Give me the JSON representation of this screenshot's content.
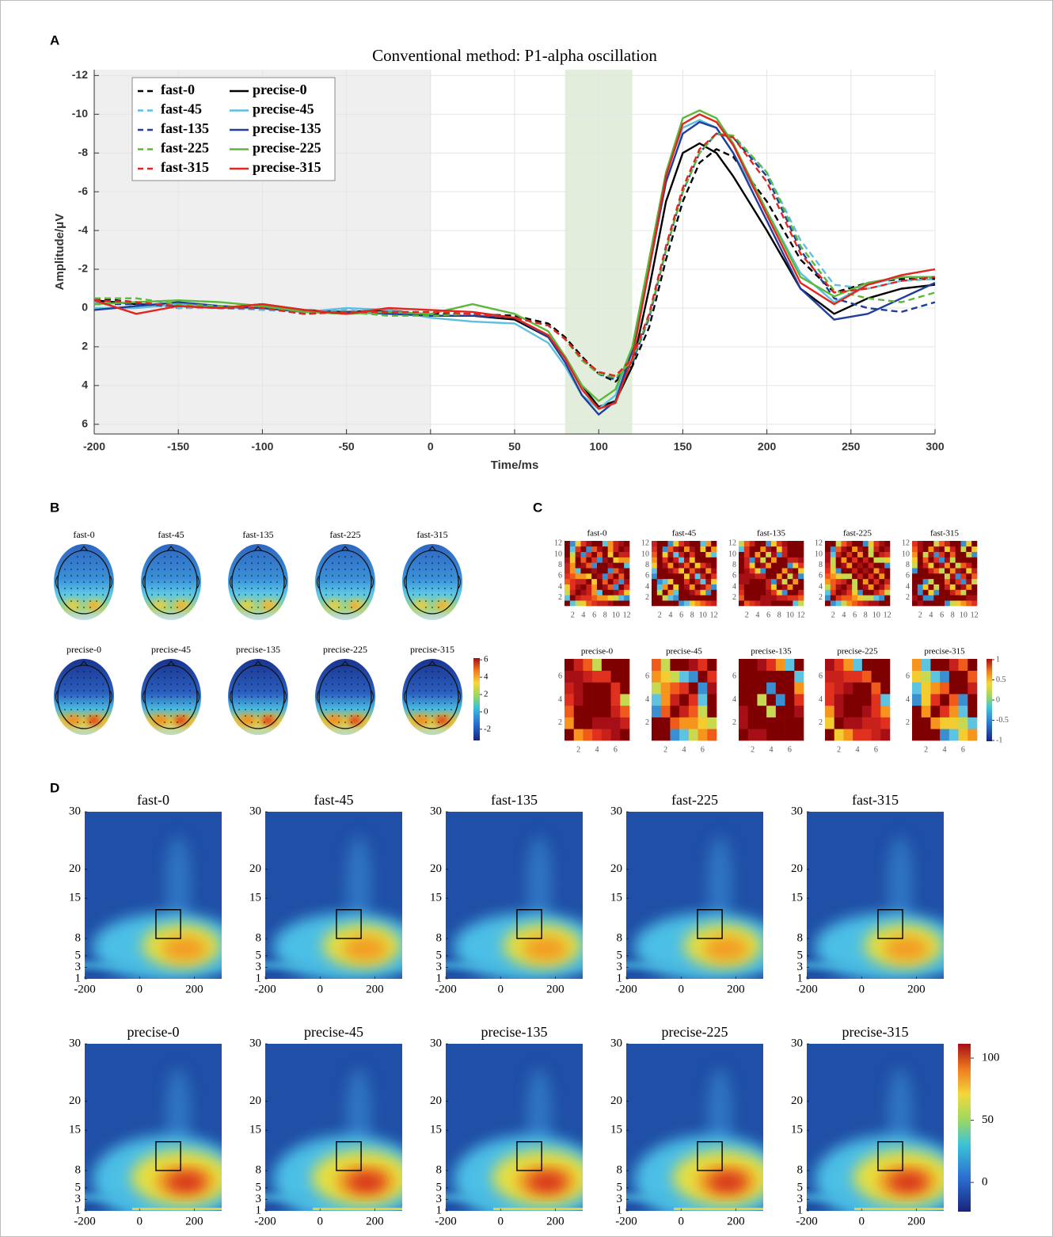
{
  "chart_data": [
    {
      "type": "line",
      "panel_label": "A",
      "title": "Conventional method: P1-alpha oscillation",
      "x_label": "Time/ms",
      "y_label": "Amplitude/μV",
      "x": [
        -200,
        -175,
        -150,
        -125,
        -100,
        -75,
        -50,
        -25,
        0,
        25,
        50,
        70,
        80,
        90,
        100,
        110,
        120,
        130,
        140,
        150,
        160,
        170,
        180,
        200,
        220,
        240,
        260,
        280,
        300
      ],
      "xlim": [
        -200,
        300
      ],
      "xticks": [
        -200,
        -150,
        -100,
        -50,
        0,
        50,
        100,
        150,
        200,
        250,
        300
      ],
      "ylim": [
        -12.3,
        6.5
      ],
      "yticks": [
        -12,
        -10,
        -8,
        -6,
        -4,
        -2,
        0,
        2,
        4,
        6
      ],
      "y_reversed": true,
      "grid": true,
      "legend_position": "upper left",
      "shaded_regions": [
        {
          "x": [
            -200,
            0
          ],
          "color": "#efefef"
        },
        {
          "x": [
            80,
            120
          ],
          "color": "#e2eedb"
        }
      ],
      "series": [
        {
          "name": "fast-0",
          "color": "#000000",
          "dashed": true,
          "values": [
            -0.5,
            -0.3,
            0,
            -0.1,
            0,
            0.3,
            0.2,
            0.2,
            0.3,
            0.3,
            0.4,
            0.8,
            1.5,
            2.5,
            3.4,
            3.8,
            3.0,
            1.0,
            -2.5,
            -5.5,
            -7.5,
            -8.2,
            -7.8,
            -5.5,
            -2.5,
            -0.8,
            -1.3,
            -1.5,
            -1.5
          ]
        },
        {
          "name": "precise-0",
          "color": "#000000",
          "dashed": false,
          "values": [
            -0.4,
            -0.2,
            -0.1,
            0,
            -0.2,
            0.1,
            0.2,
            0.1,
            0.4,
            0.4,
            0.6,
            1.5,
            2.5,
            4.0,
            5.1,
            4.8,
            3.0,
            -1.0,
            -5.5,
            -8.0,
            -8.5,
            -8.0,
            -6.8,
            -4.0,
            -1.0,
            0.3,
            -0.5,
            -1.0,
            -1.2
          ]
        },
        {
          "name": "fast-45",
          "color": "#5fbfe0",
          "dashed": true,
          "values": [
            -0.3,
            -0.2,
            0,
            0,
            0.1,
            0.2,
            0.1,
            0.3,
            0.4,
            0.3,
            0.5,
            0.9,
            1.6,
            2.6,
            3.3,
            3.6,
            2.8,
            0.5,
            -3.0,
            -6.0,
            -8.0,
            -9.0,
            -8.8,
            -7.0,
            -3.5,
            -1.2,
            -1.0,
            -1.4,
            -1.5
          ]
        },
        {
          "name": "precise-45",
          "color": "#5fbfe0",
          "dashed": false,
          "values": [
            0,
            0,
            -0.2,
            0,
            0,
            0.2,
            0,
            0.1,
            0.5,
            0.7,
            0.8,
            1.8,
            3.0,
            4.5,
            5.2,
            4.5,
            2.0,
            -2.5,
            -7.0,
            -9.3,
            -9.7,
            -9.3,
            -8.0,
            -5.0,
            -1.8,
            -0.3,
            -1.2,
            -1.6,
            -1.6
          ]
        },
        {
          "name": "fast-135",
          "color": "#1f3f9a",
          "dashed": true,
          "values": [
            -0.2,
            -0.2,
            -0.1,
            0,
            0,
            0.2,
            0.3,
            0.2,
            0.4,
            0.3,
            0.5,
            0.9,
            1.6,
            2.6,
            3.4,
            3.7,
            2.8,
            0.5,
            -3.0,
            -6.0,
            -8.0,
            -9.0,
            -8.8,
            -6.8,
            -3.0,
            -0.5,
            0,
            0.2,
            -0.3
          ]
        },
        {
          "name": "precise-135",
          "color": "#1f3f9a",
          "dashed": false,
          "values": [
            0.1,
            -0.1,
            -0.3,
            -0.1,
            0,
            0.2,
            0.2,
            0.3,
            0.4,
            0.4,
            0.5,
            1.5,
            2.8,
            4.5,
            5.5,
            4.8,
            2.2,
            -2.0,
            -6.5,
            -9.0,
            -9.6,
            -9.3,
            -8.0,
            -4.5,
            -1.0,
            0.6,
            0.3,
            -0.5,
            -1.3
          ]
        },
        {
          "name": "fast-225",
          "color": "#5cb83a",
          "dashed": true,
          "values": [
            -0.5,
            -0.5,
            -0.2,
            -0.1,
            0,
            0.2,
            0.2,
            0.4,
            0.4,
            0.3,
            0.5,
            0.9,
            1.6,
            2.7,
            3.4,
            3.6,
            2.7,
            0.4,
            -3.0,
            -6.0,
            -8.0,
            -9.0,
            -8.9,
            -7.0,
            -3.2,
            -0.9,
            -0.5,
            -0.3,
            -0.8
          ]
        },
        {
          "name": "precise-225",
          "color": "#5cb83a",
          "dashed": false,
          "values": [
            -0.2,
            -0.3,
            -0.4,
            -0.3,
            -0.1,
            0.2,
            0.3,
            0.2,
            0.3,
            -0.2,
            0.3,
            1.2,
            2.5,
            4.0,
            4.8,
            4.2,
            2.0,
            -2.5,
            -7.0,
            -9.8,
            -10.2,
            -9.8,
            -8.5,
            -5.0,
            -1.6,
            -0.6,
            -1.3,
            -1.6,
            -1.6
          ]
        },
        {
          "name": "fast-315",
          "color": "#e0261f",
          "dashed": true,
          "values": [
            -0.4,
            -0.3,
            -0.1,
            0,
            0,
            0.3,
            0.2,
            0.2,
            0.2,
            0.3,
            0.5,
            0.9,
            1.6,
            2.6,
            3.3,
            3.5,
            2.6,
            0.3,
            -3.2,
            -6.2,
            -8.2,
            -9.0,
            -8.8,
            -6.5,
            -2.8,
            -0.8,
            -1.0,
            -1.4,
            -1.6
          ]
        },
        {
          "name": "precise-315",
          "color": "#e0261f",
          "dashed": false,
          "values": [
            -0.4,
            0.3,
            -0.1,
            0,
            -0.2,
            0.1,
            0.3,
            0,
            0.1,
            0.2,
            0.5,
            1.4,
            2.6,
            4.2,
            5.2,
            4.9,
            2.6,
            -2.0,
            -6.8,
            -9.5,
            -10.0,
            -9.6,
            -8.4,
            -4.8,
            -1.3,
            -0.2,
            -1.2,
            -1.7,
            -2.0
          ]
        }
      ]
    },
    {
      "type": "topomap",
      "panel_label": "B",
      "titles": [
        [
          "fast-0",
          "fast-45",
          "fast-135",
          "fast-225",
          "fast-315"
        ],
        [
          "precise-0",
          "precise-45",
          "precise-135",
          "precise-225",
          "precise-315"
        ]
      ],
      "colorbar": {
        "lim": [
          -3.3,
          6.2
        ],
        "ticks": [
          -2,
          0,
          2,
          4,
          6
        ]
      }
    },
    {
      "type": "matrix",
      "panel_label": "C",
      "rows": [
        {
          "titles": [
            "fast-0",
            "fast-45",
            "fast-135",
            "fast-225",
            "fast-315"
          ],
          "lim": [
            0.5,
            12.5
          ],
          "ticks": [
            2,
            4,
            6,
            8,
            10,
            12
          ]
        },
        {
          "titles": [
            "precise-0",
            "precise-45",
            "precise-135",
            "precise-225",
            "precise-315"
          ],
          "lim": [
            0.5,
            7.5
          ],
          "ticks": [
            2,
            4,
            6
          ]
        }
      ],
      "colorbar": {
        "lim": [
          -1,
          1
        ],
        "ticks": [
          -1,
          -0.5,
          0,
          0.5,
          1
        ]
      }
    },
    {
      "type": "heatmap",
      "panel_label": "D",
      "titles": [
        [
          "fast-0",
          "fast-45",
          "fast-135",
          "fast-225",
          "fast-315"
        ],
        [
          "precise-0",
          "precise-45",
          "precise-135",
          "precise-225",
          "precise-315"
        ]
      ],
      "xlim": [
        -200,
        300
      ],
      "xticks": [
        -200,
        0,
        200
      ],
      "ylim": [
        1,
        30
      ],
      "yticks": [
        1,
        3,
        5,
        8,
        15,
        20,
        30
      ],
      "box": {
        "x": [
          60,
          150
        ],
        "y": [
          8,
          13
        ]
      },
      "colorbar": {
        "lim": [
          -23.5,
          111.5
        ],
        "ticks": [
          0,
          50,
          100
        ]
      }
    }
  ]
}
